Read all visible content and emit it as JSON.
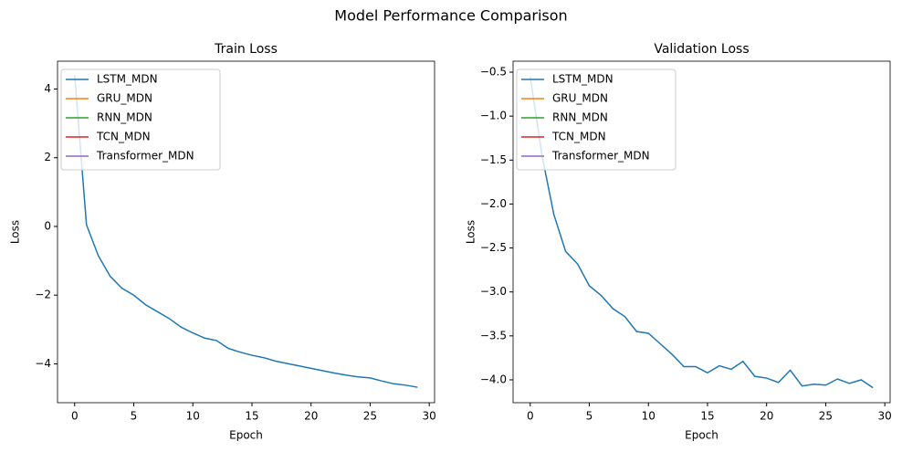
{
  "title": "Model Performance Comparison",
  "chart_data": [
    {
      "type": "line",
      "title": "Train Loss",
      "x_label": "Epoch",
      "y_label": "Loss",
      "x": [
        0,
        1,
        2,
        3,
        4,
        5,
        6,
        7,
        8,
        9,
        10,
        11,
        12,
        13,
        14,
        15,
        16,
        17,
        18,
        19,
        20,
        21,
        22,
        23,
        24,
        25,
        26,
        27,
        28,
        29
      ],
      "series": [
        {
          "name": "LSTM_MDN",
          "color": "#1f77b4",
          "values": [
            4.4,
            0.05,
            -0.85,
            -1.45,
            -1.8,
            -2.0,
            -2.28,
            -2.48,
            -2.68,
            -2.93,
            -3.1,
            -3.25,
            -3.32,
            -3.55,
            -3.66,
            -3.75,
            -3.82,
            -3.92,
            -3.99,
            -4.06,
            -4.13,
            -4.2,
            -4.27,
            -4.33,
            -4.38,
            -4.41,
            -4.5,
            -4.58,
            -4.62,
            -4.68
          ]
        },
        {
          "name": "GRU_MDN",
          "color": "#ff7f0e",
          "values": [
            null,
            null,
            null,
            null,
            null,
            null,
            null,
            null,
            null,
            null,
            null,
            null,
            null,
            null,
            null,
            null,
            null,
            null,
            null,
            null,
            null,
            null,
            null,
            null,
            null,
            null,
            null,
            null,
            null,
            null
          ]
        },
        {
          "name": "RNN_MDN",
          "color": "#2ca02c",
          "values": [
            null,
            null,
            null,
            null,
            null,
            null,
            null,
            null,
            null,
            null,
            null,
            null,
            null,
            null,
            null,
            null,
            null,
            null,
            null,
            null,
            null,
            null,
            null,
            null,
            null,
            null,
            null,
            null,
            null,
            null
          ]
        },
        {
          "name": "TCN_MDN",
          "color": "#d62728",
          "values": [
            null,
            null,
            null,
            null,
            null,
            null,
            null,
            null,
            null,
            null,
            null,
            null,
            null,
            null,
            null,
            null,
            null,
            null,
            null,
            null,
            null,
            null,
            null,
            null,
            null,
            null,
            null,
            null,
            null,
            null
          ]
        },
        {
          "name": "Transformer_MDN",
          "color": "#9467bd",
          "values": [
            null,
            null,
            null,
            null,
            null,
            null,
            null,
            null,
            null,
            null,
            null,
            null,
            null,
            null,
            null,
            null,
            null,
            null,
            null,
            null,
            null,
            null,
            null,
            null,
            null,
            null,
            null,
            null,
            null,
            null
          ]
        }
      ],
      "xlim": [
        -1.45,
        30.45
      ],
      "xticks": [
        0,
        5,
        10,
        15,
        20,
        25,
        30
      ],
      "ylim": [
        -5.13,
        4.81
      ],
      "yticks": [
        {
          "value": -4,
          "label": "−4"
        },
        {
          "value": -2,
          "label": "−2"
        },
        0,
        2,
        4
      ],
      "legend": "upper left"
    },
    {
      "type": "line",
      "title": "Validation Loss",
      "x_label": "Epoch",
      "y_label": "Loss",
      "x": [
        0,
        1,
        2,
        3,
        4,
        5,
        6,
        7,
        8,
        9,
        10,
        11,
        12,
        13,
        14,
        15,
        16,
        17,
        18,
        19,
        20,
        21,
        22,
        23,
        24,
        25,
        26,
        27,
        28,
        29
      ],
      "series": [
        {
          "name": "LSTM_MDN",
          "color": "#1f77b4",
          "values": [
            -0.55,
            -1.45,
            -2.12,
            -2.54,
            -2.68,
            -2.93,
            -3.04,
            -3.19,
            -3.28,
            -3.45,
            -3.47,
            -3.59,
            -3.71,
            -3.85,
            -3.85,
            -3.92,
            -3.84,
            -3.88,
            -3.79,
            -3.96,
            -3.98,
            -4.03,
            -3.89,
            -4.07,
            -4.05,
            -4.06,
            -3.99,
            -4.04,
            -4.0,
            -4.09
          ]
        },
        {
          "name": "GRU_MDN",
          "color": "#ff7f0e",
          "values": [
            null,
            null,
            null,
            null,
            null,
            null,
            null,
            null,
            null,
            null,
            null,
            null,
            null,
            null,
            null,
            null,
            null,
            null,
            null,
            null,
            null,
            null,
            null,
            null,
            null,
            null,
            null,
            null,
            null,
            null
          ]
        },
        {
          "name": "RNN_MDN",
          "color": "#2ca02c",
          "values": [
            null,
            null,
            null,
            null,
            null,
            null,
            null,
            null,
            null,
            null,
            null,
            null,
            null,
            null,
            null,
            null,
            null,
            null,
            null,
            null,
            null,
            null,
            null,
            null,
            null,
            null,
            null,
            null,
            null,
            null
          ]
        },
        {
          "name": "TCN_MDN",
          "color": "#d62728",
          "values": [
            null,
            null,
            null,
            null,
            null,
            null,
            null,
            null,
            null,
            null,
            null,
            null,
            null,
            null,
            null,
            null,
            null,
            null,
            null,
            null,
            null,
            null,
            null,
            null,
            null,
            null,
            null,
            null,
            null,
            null
          ]
        },
        {
          "name": "Transformer_MDN",
          "color": "#9467bd",
          "values": [
            null,
            null,
            null,
            null,
            null,
            null,
            null,
            null,
            null,
            null,
            null,
            null,
            null,
            null,
            null,
            null,
            null,
            null,
            null,
            null,
            null,
            null,
            null,
            null,
            null,
            null,
            null,
            null,
            null,
            null
          ]
        }
      ],
      "xlim": [
        -1.45,
        30.45
      ],
      "xticks": [
        0,
        5,
        10,
        15,
        20,
        25,
        30
      ],
      "ylim": [
        -4.26,
        -0.375
      ],
      "yticks": [
        {
          "value": -4.0,
          "label": "−4.0"
        },
        {
          "value": -3.5,
          "label": "−3.5"
        },
        {
          "value": -3.0,
          "label": "−3.0"
        },
        {
          "value": -2.5,
          "label": "−2.5"
        },
        {
          "value": -2.0,
          "label": "−2.0"
        },
        {
          "value": -1.5,
          "label": "−1.5"
        },
        {
          "value": -1.0,
          "label": "−1.0"
        },
        {
          "value": -0.5,
          "label": "−0.5"
        }
      ],
      "legend": "upper left"
    }
  ]
}
